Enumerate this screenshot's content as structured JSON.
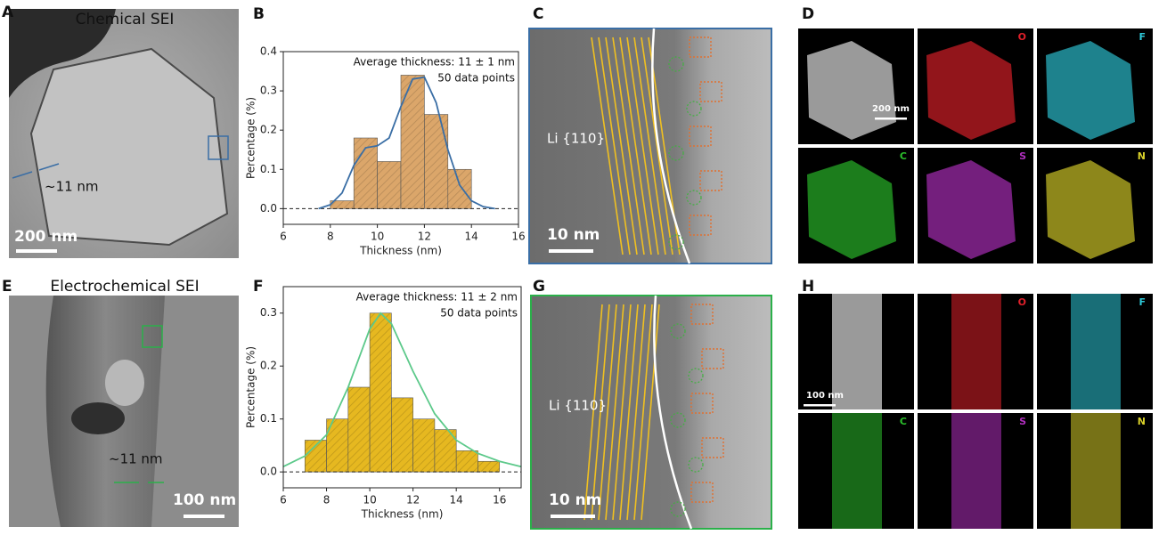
{
  "panels": [
    {
      "label": "A",
      "title": "Chemical SEI",
      "annotation": "~11 nm",
      "scale_bar": "200 nm"
    },
    {
      "label": "B"
    },
    {
      "label": "C",
      "lattice": "Li {110}",
      "scale_bar": "10 nm"
    },
    {
      "label": "D",
      "scale_bar": "200 nm",
      "maps": [
        {
          "name": "O",
          "color": "#e0202a"
        },
        {
          "name": "F",
          "color": "#2ec8d8"
        },
        {
          "name": "C",
          "color": "#2bc02b"
        },
        {
          "name": "S",
          "color": "#b22fc0"
        },
        {
          "name": "N",
          "color": "#d8d02a"
        }
      ]
    },
    {
      "label": "E",
      "title": "Electrochemical SEI",
      "annotation": "~11 nm",
      "scale_bar": "100 nm"
    },
    {
      "label": "F"
    },
    {
      "label": "G",
      "lattice": "Li {110}",
      "scale_bar": "10 nm"
    },
    {
      "label": "H",
      "scale_bar": "100 nm",
      "maps": [
        {
          "name": "O",
          "color": "#e0202a"
        },
        {
          "name": "F",
          "color": "#2ec8d8"
        },
        {
          "name": "C",
          "color": "#2bc02b"
        },
        {
          "name": "S",
          "color": "#b22fc0"
        },
        {
          "name": "N",
          "color": "#d8d02a"
        }
      ]
    }
  ],
  "chart_data": [
    {
      "type": "histogram",
      "annotations": [
        "Average thickness: 11 ± 1 nm",
        "50 data points"
      ],
      "xlabel": "Thickness (nm)",
      "ylabel": "Percentage (%)",
      "bins": [
        8,
        9,
        10,
        11,
        12,
        13,
        14
      ],
      "values": [
        0.02,
        0.18,
        0.12,
        0.34,
        0.24,
        0.1
      ],
      "color": "#dba66a",
      "fit": {
        "x": [
          7.5,
          8,
          8.5,
          9,
          9.5,
          10,
          10.5,
          11,
          11.5,
          12,
          12.5,
          13,
          13.5,
          14,
          14.5,
          15
        ],
        "values": [
          0,
          0.01,
          0.04,
          0.11,
          0.155,
          0.16,
          0.18,
          0.26,
          0.33,
          0.335,
          0.27,
          0.15,
          0.06,
          0.02,
          0.005,
          0
        ],
        "color": "#3a6ea5"
      },
      "xlim": [
        6,
        16
      ],
      "ylim": [
        -0.04,
        0.4
      ],
      "xticks": [
        6,
        8,
        10,
        12,
        14,
        16
      ],
      "yticks": [
        {
          "value": 0,
          "label": "0.0"
        },
        0.1,
        0.2,
        0.3,
        0.4
      ]
    },
    {
      "type": "histogram",
      "annotations": [
        "Average thickness: 11 ± 2 nm",
        "50 data points"
      ],
      "xlabel": "Thickness (nm)",
      "ylabel": "Percentage (%)",
      "bins": [
        7,
        8,
        9,
        10,
        11,
        12,
        13,
        14,
        15,
        16
      ],
      "values": [
        0.06,
        0.1,
        0.16,
        0.3,
        0.14,
        0.1,
        0.08,
        0.04,
        0.02
      ],
      "color": "#e6b820",
      "fit": {
        "x": [
          6,
          7,
          8,
          9,
          10,
          10.5,
          11,
          12,
          13,
          14,
          15,
          16,
          17
        ],
        "values": [
          0.01,
          0.03,
          0.07,
          0.16,
          0.27,
          0.3,
          0.28,
          0.19,
          0.11,
          0.06,
          0.035,
          0.02,
          0.01
        ],
        "color": "#5cc98a"
      },
      "xlim": [
        6,
        17
      ],
      "ylim": [
        -0.03,
        0.35
      ],
      "xticks": [
        6,
        8,
        10,
        12,
        14,
        16
      ],
      "yticks": [
        {
          "value": 0,
          "label": "0.0"
        },
        0.1,
        0.2,
        0.3
      ]
    }
  ]
}
